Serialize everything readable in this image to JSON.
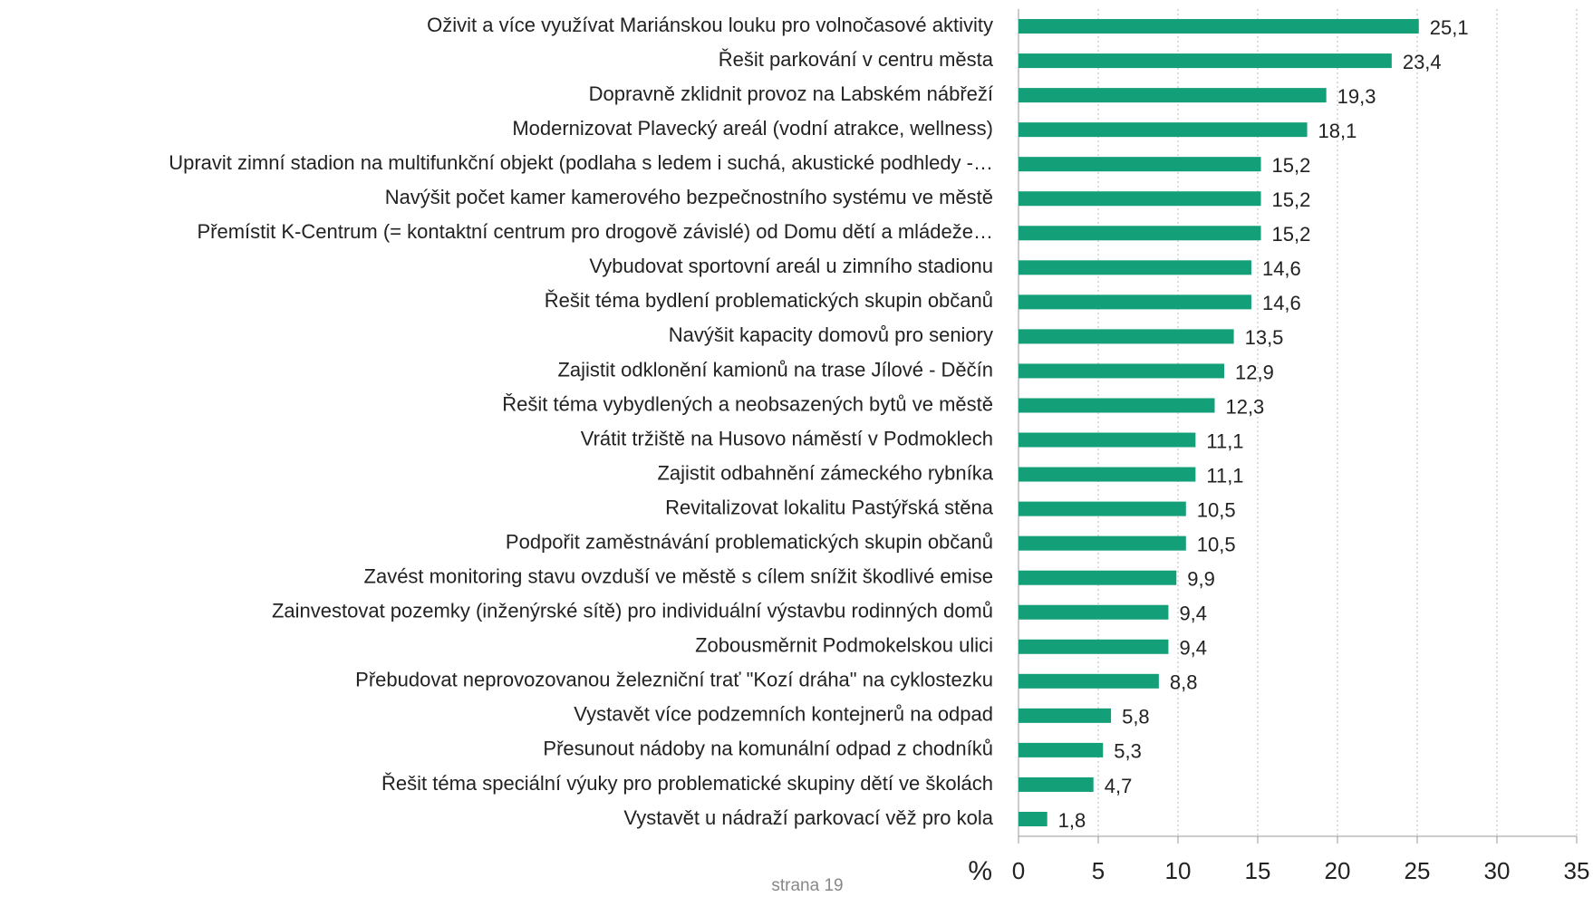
{
  "chart_data": {
    "type": "bar",
    "orientation": "horizontal",
    "categories": [
      "Oživit a více využívat Mariánskou louku pro volnočasové aktivity",
      "Řešit parkování v centru města",
      "Dopravně zklidnit provoz na Labském nábřeží",
      "Modernizovat Plavecký areál (vodní atrakce, wellness)",
      "Upravit zimní stadion na multifunkční objekt (podlaha s ledem i suchá, akustické podhledy -…",
      "Navýšit počet kamer kamerového bezpečnostního systému ve městě",
      "Přemístit K-Centrum (= kontaktní centrum pro drogově závislé) od Domu dětí a mládeže…",
      "Vybudovat sportovní areál u zimního stadionu",
      "Řešit téma bydlení problematických skupin občanů",
      "Navýšit kapacity domovů pro seniory",
      "Zajistit odklonění kamionů na trase Jílové - Děčín",
      "Řešit téma vybydlených a neobsazených bytů ve městě",
      "Vrátit tržiště na Husovo náměstí v Podmoklech",
      "Zajistit odbahnění zámeckého rybníka",
      "Revitalizovat lokalitu Pastýřská stěna",
      "Podpořit zaměstnávání problematických skupin občanů",
      "Zavést monitoring stavu ovzduší ve městě s cílem snížit škodlivé emise",
      "Zainvestovat pozemky (inženýrské sítě) pro individuální výstavbu rodinných domů",
      "Zobousměrnit Podmokelskou ulici",
      "Přebudovat neprovozovanou železniční trať \"Kozí dráha\" na cyklostezku",
      "Vystavět více podzemních kontejnerů na odpad",
      "Přesunout nádoby na komunální odpad z chodníků",
      "Řešit téma speciální výuky pro problematické skupiny dětí ve školách",
      "Vystavět u nádraží parkovací věž pro kola"
    ],
    "values": [
      25.1,
      23.4,
      19.3,
      18.1,
      15.2,
      15.2,
      15.2,
      14.6,
      14.6,
      13.5,
      12.9,
      12.3,
      11.1,
      11.1,
      10.5,
      10.5,
      9.9,
      9.4,
      9.4,
      8.8,
      5.8,
      5.3,
      4.7,
      1.8
    ],
    "value_labels": [
      "25,1",
      "23,4",
      "19,3",
      "18,1",
      "15,2",
      "15,2",
      "15,2",
      "14,6",
      "14,6",
      "13,5",
      "12,9",
      "12,3",
      "11,1",
      "11,1",
      "10,5",
      "10,5",
      "9,9",
      "9,4",
      "9,4",
      "8,8",
      "5,8",
      "5,3",
      "4,7",
      "1,8"
    ],
    "color": "#139f78",
    "xlabel": "%",
    "xlim": [
      0,
      35
    ],
    "xticks": [
      0,
      5,
      10,
      15,
      20,
      25,
      30,
      35
    ],
    "grid": true
  },
  "footer": "strana 19"
}
